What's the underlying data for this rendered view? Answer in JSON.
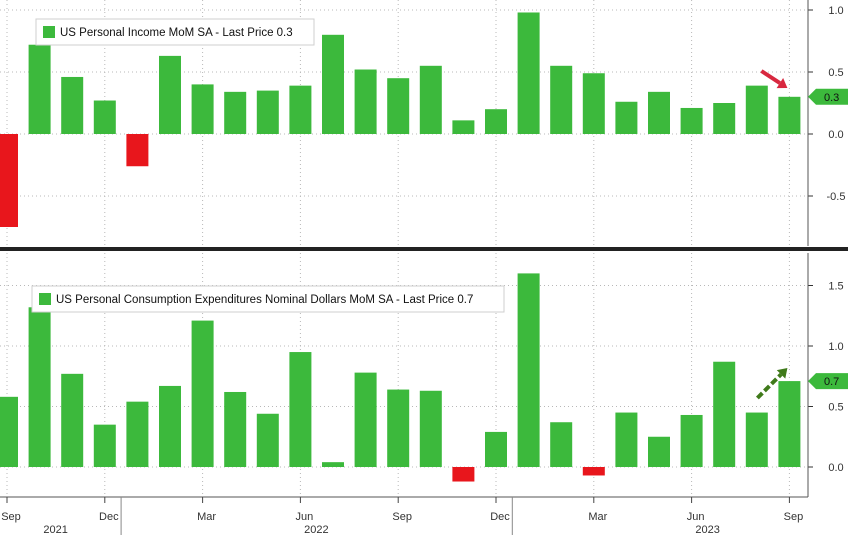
{
  "chart_data": [
    {
      "type": "bar",
      "title": "US Personal Income MoM SA - Last Price 0.3",
      "last_value_label": "0.3",
      "legend_position": "top-left",
      "grid": true,
      "ylim": [
        -0.9,
        1.05
      ],
      "yticks": [
        1.0,
        0.5,
        0.0,
        -0.5
      ],
      "ytick_labels": [
        "1.0",
        "0.5",
        "0.0",
        "-0.5"
      ],
      "colors": {
        "positive": "#3cb93c",
        "negative": "#e8161c",
        "badge": "#3cb93c",
        "arrow": "#d8283f"
      },
      "values": [
        -0.75,
        0.72,
        0.46,
        0.27,
        -0.26,
        0.63,
        0.4,
        0.34,
        0.35,
        0.39,
        0.8,
        0.52,
        0.45,
        0.55,
        0.11,
        0.2,
        0.98,
        0.55,
        0.49,
        0.26,
        0.34,
        0.21,
        0.25,
        0.39,
        0.3
      ]
    },
    {
      "type": "bar",
      "title": "US Personal Consumption Expenditures Nominal Dollars MoM SA - Last Price 0.7",
      "last_value_label": "0.7",
      "legend_position": "top-left",
      "grid": true,
      "ylim": [
        -0.2,
        1.8
      ],
      "yticks": [
        1.5,
        1.0,
        0.5,
        0.0
      ],
      "ytick_labels": [
        "1.5",
        "1.0",
        "0.5",
        "0.0"
      ],
      "colors": {
        "positive": "#3cb93c",
        "negative": "#e8161c",
        "badge": "#3cb93c",
        "arrow": "#3f7a1a"
      },
      "values": [
        0.58,
        1.32,
        0.77,
        0.35,
        0.54,
        0.67,
        1.21,
        0.62,
        0.44,
        0.95,
        0.04,
        0.78,
        0.64,
        0.63,
        -0.12,
        0.29,
        1.6,
        0.37,
        -0.07,
        0.45,
        0.25,
        0.43,
        0.87,
        0.45,
        0.71
      ]
    }
  ],
  "x_axis": {
    "month_labels": [
      {
        "index": 0,
        "label": "Sep"
      },
      {
        "index": 3,
        "label": "Dec"
      },
      {
        "index": 6,
        "label": "Mar"
      },
      {
        "index": 9,
        "label": "Jun"
      },
      {
        "index": 12,
        "label": "Sep"
      },
      {
        "index": 15,
        "label": "Dec"
      },
      {
        "index": 18,
        "label": "Mar"
      },
      {
        "index": 21,
        "label": "Jun"
      },
      {
        "index": 24,
        "label": "Sep"
      }
    ],
    "year_labels": [
      {
        "index": 1,
        "label": "2021"
      },
      {
        "index": 9,
        "label": "2022"
      },
      {
        "index": 21,
        "label": "2023"
      }
    ],
    "year_boundaries": [
      3.5,
      15.5
    ]
  }
}
